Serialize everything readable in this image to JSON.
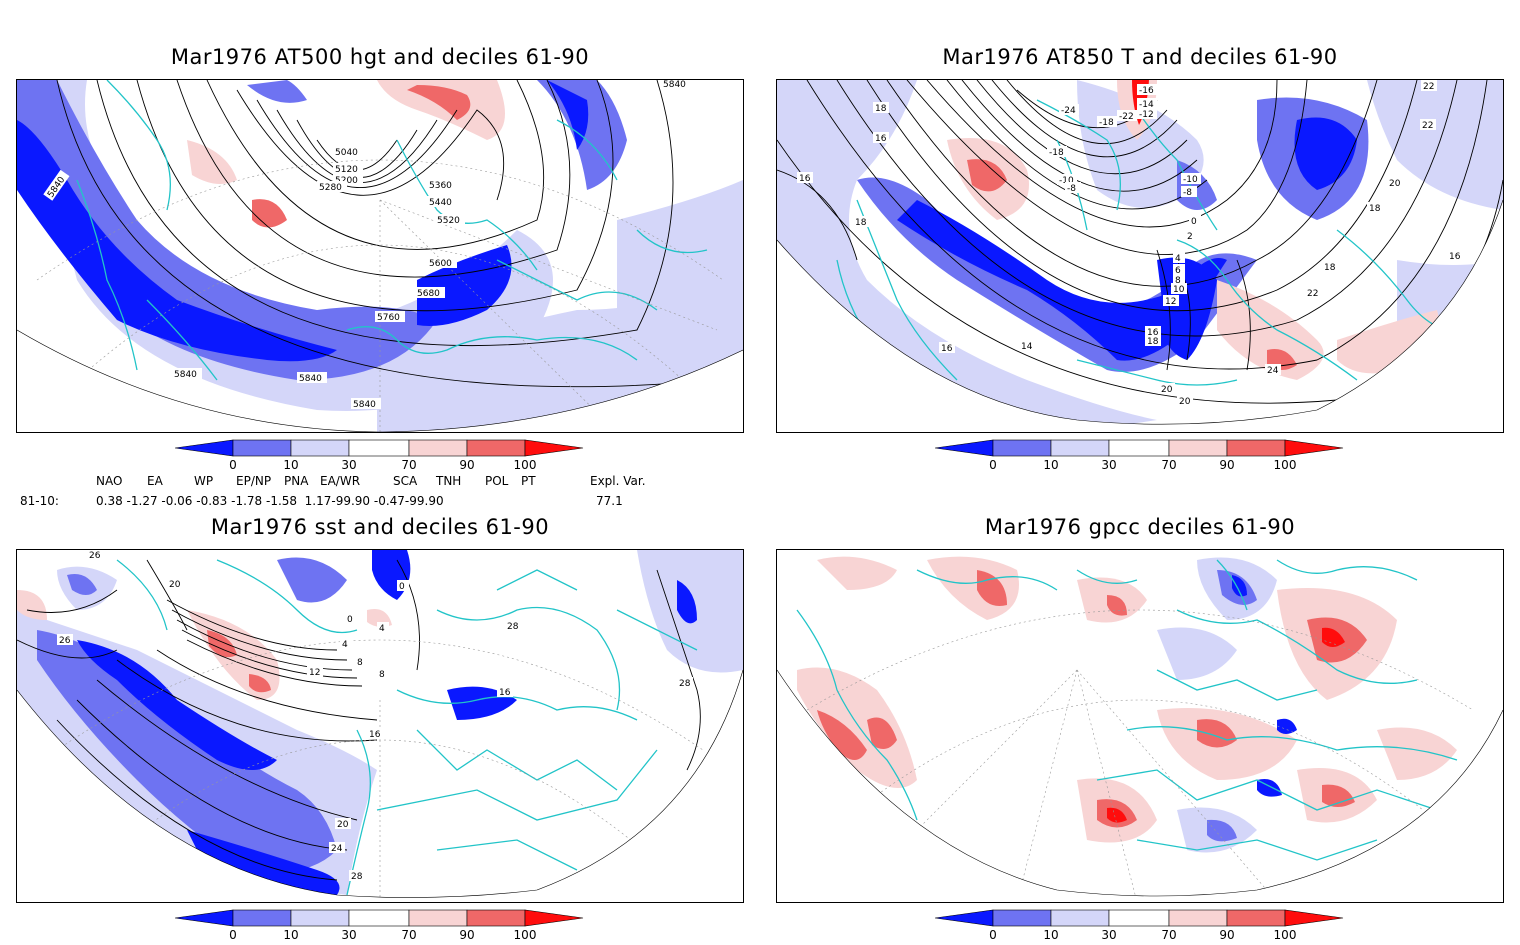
{
  "colors": {
    "d0_10": "#0a18ff",
    "d10_30": "#6e73f2",
    "d30": "#d4d6f9",
    "d70": "#f8d4d4",
    "d70_90": "#ef6868",
    "d90_100": "#ff0d0d",
    "coast": "#22c4c8",
    "contour": "#000000"
  },
  "colorbar_ticks": [
    "0",
    "10",
    "30",
    "70",
    "90",
    "100"
  ],
  "panels": [
    {
      "title": "Mar1976 AT500 hgt and deciles 61-90",
      "contour_labels": [
        "5040",
        "5120",
        "5200",
        "5280",
        "5360",
        "5440",
        "5520",
        "5600",
        "5680",
        "5760",
        "5840",
        "5840",
        "5840",
        "5840",
        "5840"
      ]
    },
    {
      "title": "Mar1976 AT850 T and deciles 61-90",
      "contour_labels": [
        "-16",
        "-14",
        "-12",
        "-24",
        "-22",
        "-18",
        "-18",
        "-10",
        "-8",
        "-10",
        "-8",
        "0",
        "2",
        "4",
        "6",
        "8",
        "10",
        "12",
        "14",
        "16",
        "18",
        "20",
        "18",
        "22",
        "24",
        "22",
        "22",
        "20",
        "18",
        "20",
        "18",
        "16",
        "16",
        "18",
        "16",
        "16"
      ]
    },
    {
      "title": "Mar1976 sst and deciles 61-90",
      "contour_labels": [
        "26",
        "20",
        "26",
        "0",
        "0",
        "4",
        "4",
        "8",
        "12",
        "8",
        "16",
        "16",
        "20",
        "24",
        "28",
        "28",
        "28"
      ]
    },
    {
      "title": "Mar1976 gpcc deciles 61-90",
      "contour_labels": []
    }
  ],
  "indices": {
    "headers": [
      "NAO",
      "EA",
      "WP",
      "EP/NP",
      "PNA",
      "EA/WR",
      "SCA",
      "TNH",
      "POL",
      "PT",
      "Expl. Var."
    ],
    "row_label": "81-10:",
    "values_text": "0.38 -1.27 -0.06 -0.83 -1.78 -1.58  1.17-99.90 -0.47-99.90",
    "expl_var": "77.1"
  }
}
